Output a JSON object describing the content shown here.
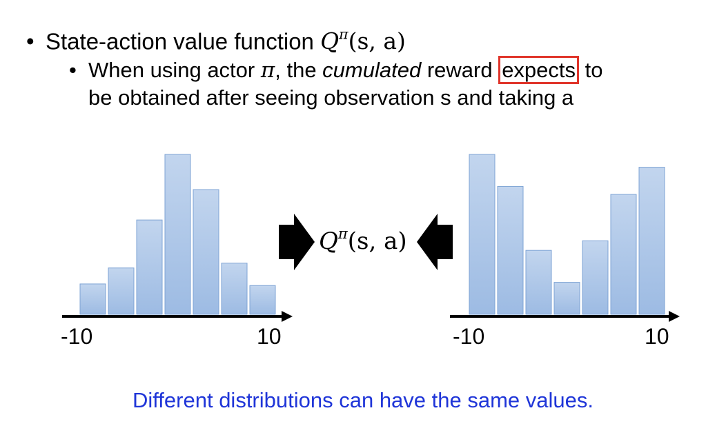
{
  "slide": {
    "bullet1": {
      "text": "State-action value function ",
      "math_base": "Q",
      "math_sup": "π",
      "math_args": "(s, a)"
    },
    "bullet2": {
      "part1": "When using actor ",
      "pi": "π",
      "part2": ", the ",
      "emph": "cumulated",
      "part3": " reward ",
      "boxed": "expects",
      "part4": " to",
      "line2": "be obtained after seeing observation s and taking a"
    },
    "center_label": {
      "base": "Q",
      "sup": "π",
      "args": "(s, a)"
    },
    "footer": "Different distributions can have the same values.",
    "colors": {
      "bar_fill_top": "#c2d5ee",
      "bar_fill_bottom": "#9dbbe3",
      "bar_stroke": "#7ea3d4",
      "highlight_box": "#e0352b",
      "footer_text": "#1f35d8"
    }
  },
  "chart_data": [
    {
      "type": "bar",
      "categories": [
        "1",
        "2",
        "3",
        "4",
        "5",
        "6",
        "7"
      ],
      "values": [
        0.19,
        0.29,
        0.59,
        1.0,
        0.78,
        0.32,
        0.18
      ],
      "xlim": [
        -10,
        10
      ],
      "x_tick_labels": [
        "-10",
        "10"
      ],
      "ylim": [
        0,
        1.05
      ],
      "grid": false,
      "legend": false
    },
    {
      "type": "bar",
      "categories": [
        "1",
        "2",
        "3",
        "4",
        "5",
        "6",
        "7"
      ],
      "values": [
        1.0,
        0.8,
        0.4,
        0.2,
        0.46,
        0.75,
        0.92
      ],
      "xlim": [
        -10,
        10
      ],
      "x_tick_labels": [
        "-10",
        "10"
      ],
      "ylim": [
        0,
        1.05
      ],
      "grid": false,
      "legend": false
    }
  ]
}
